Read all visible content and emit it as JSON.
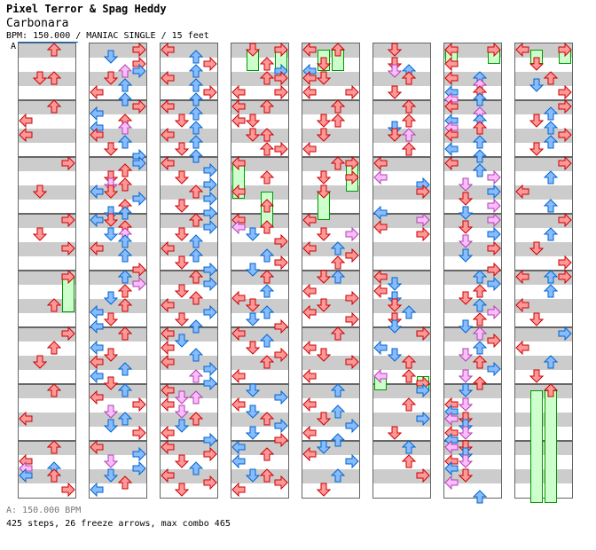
{
  "header": {
    "artist": "Pixel Terror & Spag Heddy",
    "song": "Carbonara",
    "info": "BPM: 150.000 / MANIAC SINGLE / 15 feet",
    "bpm_marker": "A"
  },
  "footer": {
    "bpm_legend": "A: 150.000 BPM",
    "stats": "425 steps, 26 freeze arrows, max combo 465"
  },
  "colors": {
    "quarter": "#ff9999",
    "quarter_stroke": "#cc0000",
    "eighth": "#88bbff",
    "eighth_stroke": "#0066cc",
    "sixteenth": "#ffbbff",
    "sixteenth_stroke": "#aa44aa",
    "freeze_fill": "#ccffcc",
    "freeze_stroke": "#009900",
    "band": "#cccccc",
    "border": "#666666"
  },
  "chart_data": {
    "type": "table",
    "lanes": [
      "left",
      "down",
      "up",
      "right"
    ],
    "columns": [
      {
        "notes": [
          "2,1,r",
          "1,5,r",
          "2,5,r",
          "2,9,r",
          "0,11,r",
          "0,13,r",
          "3,17,r",
          "1,21,r",
          "3,25,r",
          "1,27,r",
          "3,29,r",
          "3,33,r",
          "2,37,r",
          "3,41,r",
          "2,43,r",
          "1,45,r",
          "2,49,r",
          "0,53,r",
          "2,57,r",
          "0,59,r",
          "0,60,p",
          "2,60,b",
          "0,61,b",
          "2,61,r",
          "3,63,r"
        ],
        "freezes": [
          "3,33,38"
        ]
      },
      {
        "notes": [
          "3,1,r",
          "1,2,b",
          "3,3,r",
          "2,4,p",
          "3,4,b",
          "1,5,r",
          "2,6,b",
          "0,7,r",
          "2,8,b",
          "3,9,r",
          "0,10,b",
          "2,11,r",
          "0,12,b",
          "2,12,p",
          "0,13,r",
          "2,14,b",
          "1,15,r",
          "3,16,b",
          "3,17,b",
          "2,18,r",
          "1,19,r",
          "1,20,p",
          "2,20,r",
          "0,21,b",
          "1,21,r",
          "3,22,b",
          "2,23,r",
          "1,24,b",
          "2,24,b",
          "0,25,b",
          "1,25,r",
          "2,26,r",
          "1,27,b",
          "2,27,p",
          "2,28,b",
          "0,29,r",
          "2,30,b",
          "3,32,r",
          "2,33,b",
          "3,34,p",
          "2,35,r",
          "1,36,b",
          "2,37,r",
          "0,38,b",
          "1,39,r",
          "0,40,b",
          "2,41,r",
          "0,43,b",
          "1,44,r",
          "0,45,r",
          "2,46,b",
          "0,47,b",
          "1,48,r",
          "2,49,b",
          "0,50,r",
          "3,51,r",
          "1,52,p",
          "2,53,b",
          "1,54,b",
          "3,55,r",
          "0,57,r",
          "3,58,b",
          "1,59,p",
          "3,60,b",
          "1,61,b",
          "2,62,r",
          "0,63,b"
        ],
        "freezes": []
      },
      {
        "notes": [
          "0,1,r",
          "2,2,b",
          "3,3,r",
          "2,4,b",
          "0,5,r",
          "2,6,b",
          "3,7,r",
          "2,8,b",
          "0,9,r",
          "2,10,b",
          "1,11,r",
          "2,12,b",
          "0,13,r",
          "2,14,b",
          "1,15,r",
          "2,16,b",
          "0,17,r",
          "3,18,b",
          "1,19,r",
          "3,20,b",
          "2,21,r",
          "3,22,b",
          "1,23,r",
          "3,24,b",
          "2,25,r",
          "3,26,b",
          "1,27,r",
          "2,28,b",
          "0,29,r",
          "2,30,b",
          "1,31,r",
          "3,32,b",
          "2,33,r",
          "3,34,b",
          "1,35,r",
          "2,36,r",
          "0,37,r",
          "3,38,b",
          "1,39,r",
          "2,40,b",
          "0,41,r",
          "1,42,b",
          "0,43,r",
          "2,44,b",
          "0,45,r",
          "3,46,b",
          "2,47,p",
          "3,48,b",
          "0,49,r",
          "1,50,p",
          "2,50,p",
          "0,51,r",
          "1,52,p",
          "2,53,r",
          "1,54,b",
          "0,55,r",
          "3,56,b",
          "0,57,r",
          "3,58,r",
          "1,59,r",
          "2,60,b",
          "0,61,r",
          "3,62,r",
          "1,63,r"
        ],
        "freezes": []
      },
      {
        "notes": [
          "1,1,r",
          "3,1,r",
          "2,3,r",
          "3,4,b",
          "2,5,r",
          "3,5,r",
          "0,7,r",
          "3,7,r",
          "0,9,r",
          "2,9,r",
          "0,11,r",
          "1,11,r",
          "1,13,r",
          "2,13,r",
          "2,15,r",
          "3,15,r",
          "0,17,r",
          "2,19,r",
          "0,21,r",
          "2,23,r",
          "0,25,r",
          "0,26,p",
          "1,27,b",
          "2,26,r",
          "3,28,r",
          "2,30,b",
          "3,31,r",
          "1,32,b",
          "2,33,r",
          "2,35,b",
          "0,36,r",
          "1,37,r",
          "2,38,b",
          "1,39,b",
          "3,40,r",
          "0,41,r",
          "2,42,b",
          "1,43,r",
          "3,44,r",
          "2,45,r",
          "0,47,r",
          "1,49,b",
          "3,50,b",
          "0,51,r",
          "1,52,b",
          "2,53,r",
          "3,54,b",
          "1,55,b",
          "3,56,r",
          "0,57,b",
          "2,58,r",
          "0,59,b",
          "1,61,b",
          "2,61,r",
          "3,62,r",
          "0,63,r"
        ],
        "freezes": [
          "1,1,4",
          "3,1,4",
          "0,17,22",
          "2,21,26"
        ]
      },
      {
        "notes": [
          "0,1,r",
          "2,1,r",
          "1,3,r",
          "0,4,b",
          "0,5,r",
          "1,5,r",
          "0,7,r",
          "3,7,r",
          "2,9,r",
          "1,11,r",
          "2,11,r",
          "1,13,r",
          "0,15,r",
          "2,17,r",
          "3,17,r",
          "1,19,r",
          "3,19,r",
          "1,21,r",
          "0,25,r",
          "1,27,r",
          "3,27,p",
          "2,29,b",
          "0,29,r",
          "3,30,r",
          "2,31,r",
          "1,33,r",
          "2,33,b",
          "0,35,r",
          "3,36,r",
          "1,37,r",
          "0,38,r",
          "3,39,r",
          "2,41,r",
          "0,43,r",
          "1,44,r",
          "3,45,r",
          "0,47,r",
          "2,49,b",
          "0,51,r",
          "2,52,b",
          "1,53,r",
          "3,54,b",
          "0,55,r",
          "2,56,b",
          "1,57,b",
          "0,58,r",
          "3,59,b",
          "2,61,b",
          "1,63,r"
        ],
        "freezes": [
          "1,1,4",
          "2,1,4",
          "1,21,25",
          "3,17,21"
        ]
      },
      {
        "notes": [
          "1,1,r",
          "1,3,r",
          "1,4,p",
          "2,4,b",
          "2,5,r",
          "1,7,r",
          "2,9,r",
          "2,11,r",
          "1,12,b",
          "1,13,r",
          "2,13,p",
          "2,15,r",
          "0,17,r",
          "0,19,p",
          "3,20,b",
          "3,21,r",
          "0,24,b",
          "3,25,p",
          "0,26,r",
          "3,27,r",
          "0,33,r",
          "1,34,b",
          "0,35,r",
          "1,36,b",
          "1,37,r",
          "2,38,b",
          "1,39,r",
          "1,40,b",
          "3,41,r",
          "0,43,b",
          "1,44,b",
          "2,45,r",
          "0,47,p",
          "2,47,r",
          "3,48,r",
          "3,49,b",
          "2,51,r",
          "3,53,b",
          "1,55,r",
          "2,57,b",
          "3,61,r",
          "2,59,r"
        ],
        "freezes": [
          "0,47,49",
          "3,47,49"
        ]
      },
      {
        "notes": [
          "0,1,r",
          "3,1,r",
          "0,3,r",
          "2,5,b",
          "0,5,r",
          "2,6,p",
          "2,7,r",
          "0,7,b",
          "0,8,p",
          "2,8,b",
          "0,9,r",
          "2,10,p",
          "0,11,b",
          "2,11,b",
          "0,12,p",
          "2,12,r",
          "0,13,r",
          "2,14,b",
          "0,15,b",
          "2,16,b",
          "0,17,r",
          "2,18,b",
          "3,19,p",
          "1,20,p",
          "3,21,b",
          "1,22,r",
          "3,23,p",
          "1,24,b",
          "3,25,p",
          "1,26,r",
          "3,27,b",
          "1,28,p",
          "3,29,r",
          "1,30,b",
          "3,32,r",
          "2,33,b",
          "3,34,b",
          "2,35,r",
          "1,36,r",
          "2,37,b",
          "3,38,p",
          "2,39,r",
          "1,40,b",
          "2,41,p",
          "3,42,r",
          "2,43,b",
          "1,44,p",
          "2,45,r",
          "3,46,b",
          "1,47,p",
          "2,48,r",
          "1,49,b",
          "0,51,r",
          "1,51,p",
          "0,52,b",
          "1,53,r",
          "0,53,p",
          "1,54,b",
          "0,55,r",
          "1,55,p",
          "0,56,b",
          "1,57,r",
          "0,57,p",
          "1,58,b",
          "0,59,r",
          "1,59,p",
          "0,60,b",
          "1,61,r",
          "0,62,p",
          "2,64,b"
        ],
        "freezes": [
          "0,1,3",
          "3,1,3"
        ]
      },
      {
        "notes": [
          "0,1,r",
          "3,1,r",
          "1,3,r",
          "2,5,r",
          "1,6,b",
          "3,7,r",
          "3,9,r",
          "2,10,b",
          "1,11,r",
          "2,12,b",
          "3,13,r",
          "2,14,b",
          "1,15,r",
          "3,17,r",
          "2,19,b",
          "0,21,r",
          "2,23,b",
          "3,25,r",
          "2,27,b",
          "1,29,r",
          "3,31,r",
          "2,33,b",
          "0,33,r",
          "3,33,r",
          "2,35,b",
          "0,37,r",
          "1,39,r",
          "3,41,b",
          "0,43,r",
          "2,45,b",
          "1,47,r",
          "2,49,r"
        ],
        "freezes": [
          "1,1,3",
          "3,1,3",
          "1,49,65",
          "2,49,65"
        ]
      }
    ]
  }
}
